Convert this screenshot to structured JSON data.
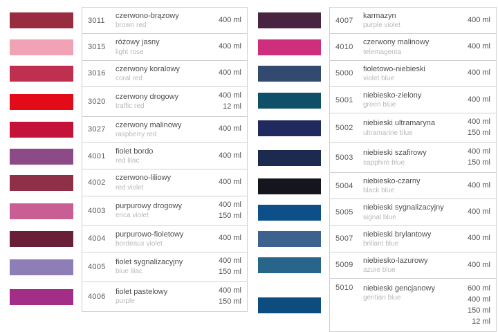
{
  "catalog": {
    "unit_labels": [
      "400 ml",
      "150 ml",
      "12 ml",
      "600 ml"
    ],
    "border_color": "#cfcfcf",
    "columns": [
      {
        "name": "left",
        "rows": [
          {
            "code": "3011",
            "name_pl": "czerwono-brązowy",
            "name_en": "brown red",
            "volumes": [
              "400 ml"
            ],
            "color": "#992c3e"
          },
          {
            "code": "3015",
            "name_pl": "różowy jasny",
            "name_en": "light rose",
            "volumes": [
              "400 ml"
            ],
            "color": "#f2a2b7"
          },
          {
            "code": "3016",
            "name_pl": "czerwony koralowy",
            "name_en": "coral red",
            "volumes": [
              "400 ml"
            ],
            "color": "#bf3050"
          },
          {
            "code": "3020",
            "name_pl": "czerwony drogowy",
            "name_en": "traffic red",
            "volumes": [
              "400 ml",
              "12 ml"
            ],
            "color": "#e30b17"
          },
          {
            "code": "3027",
            "name_pl": "czerwony malinowy",
            "name_en": "raspberry red",
            "volumes": [
              "400 ml"
            ],
            "color": "#c5123a"
          },
          {
            "code": "4001",
            "name_pl": "fiolet bordo",
            "name_en": "red lilac",
            "volumes": [
              "400 ml"
            ],
            "color": "#8c4a87"
          },
          {
            "code": "4002",
            "name_pl": "czerwono-liliowy",
            "name_en": "red violet",
            "volumes": [
              "400 ml"
            ],
            "color": "#903048"
          },
          {
            "code": "4003",
            "name_pl": "purpurowy drogowy",
            "name_en": "erica violet",
            "volumes": [
              "400 ml",
              "150 ml"
            ],
            "color": "#c95e92"
          },
          {
            "code": "4004",
            "name_pl": "purpurowo-fioletowy",
            "name_en": "bordeaux violet",
            "volumes": [
              "400 ml"
            ],
            "color": "#691f38"
          },
          {
            "code": "4005",
            "name_pl": "fiolet sygnalizacyjny",
            "name_en": "blue lilac",
            "volumes": [
              "400 ml",
              "150 ml"
            ],
            "color": "#8f7db8"
          },
          {
            "code": "4006",
            "name_pl": "fiolet pastelowy",
            "name_en": "purple",
            "volumes": [
              "400 ml",
              "150 ml"
            ],
            "color": "#a32e87"
          }
        ]
      },
      {
        "name": "right",
        "rows": [
          {
            "code": "4007",
            "name_pl": "karmazyn",
            "name_en": "purple violet",
            "volumes": [
              "400 ml"
            ],
            "color": "#472441"
          },
          {
            "code": "4010",
            "name_pl": "czerwony malinowy",
            "name_en": "telemagenta",
            "volumes": [
              "400 ml"
            ],
            "color": "#ce2f7d"
          },
          {
            "code": "5000",
            "name_pl": "fioletowo-niebieski",
            "name_en": "violet blue",
            "volumes": [
              "400 ml"
            ],
            "color": "#334a70"
          },
          {
            "code": "5001",
            "name_pl": "niebiesko-zielony",
            "name_en": "green blue",
            "volumes": [
              "400 ml"
            ],
            "color": "#0f4f68"
          },
          {
            "code": "5002",
            "name_pl": "niebieski ultramaryna",
            "name_en": "ultramarine blue",
            "volumes": [
              "400 ml",
              "150 ml"
            ],
            "color": "#212a5e"
          },
          {
            "code": "5003",
            "name_pl": "niebieski szafirowy",
            "name_en": "sapphire blue",
            "volumes": [
              "400 ml",
              "150 ml"
            ],
            "color": "#1b2a4e"
          },
          {
            "code": "5004",
            "name_pl": "niebiesko-czarny",
            "name_en": "black blue",
            "volumes": [
              "400 ml"
            ],
            "color": "#14151d"
          },
          {
            "code": "5005",
            "name_pl": "niebieski sygnalizacyjny",
            "name_en": "signal blue",
            "volumes": [
              "400 ml"
            ],
            "color": "#0d4f88"
          },
          {
            "code": "5007",
            "name_pl": "niebieski brylantowy",
            "name_en": "brillant blue",
            "volumes": [
              "400 ml"
            ],
            "color": "#3e628e"
          },
          {
            "code": "5009",
            "name_pl": "niebiesko-lazurowy",
            "name_en": "azure blue",
            "volumes": [
              "400 ml"
            ],
            "color": "#27658a"
          },
          {
            "code": "5010",
            "name_pl": "niebieski gencjanowy",
            "name_en": "gentian blue",
            "volumes": [
              "600 ml",
              "400 ml",
              "150 ml",
              "12 ml"
            ],
            "color": "#0d4c7e"
          }
        ]
      }
    ]
  }
}
